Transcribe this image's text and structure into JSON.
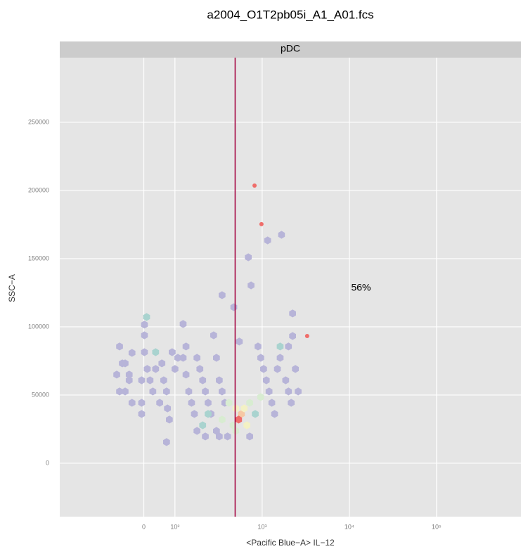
{
  "chart_data": {
    "type": "hexbin",
    "title": "a2004_O1T2pb05i_A1_A01.fcs",
    "panel_label": "pDC",
    "x_label": "<Pacific Blue−A> IL−12",
    "y_label": "SSC−A",
    "x_scale": "biexponential",
    "xlim": [
      -270,
      930000
    ],
    "ylim": [
      -39200,
      297400
    ],
    "xticks": [
      0,
      {
        "value": 100,
        "label": "10²"
      },
      {
        "value": 1000,
        "label": "10³"
      },
      {
        "value": 10000,
        "label": "10⁴"
      },
      {
        "value": 100000,
        "label": "10⁵"
      }
    ],
    "yticks": [
      0,
      50000,
      100000,
      150000,
      200000,
      250000
    ],
    "grid": true,
    "gate_x": 490,
    "gate_color": "#a3003f",
    "annotation": {
      "text": "56%",
      "x": 10500,
      "y": 128400
    },
    "palette": [
      "#b7b4d8",
      "#a9d3cf",
      "#d8ecd1",
      "#f3f1c4",
      "#f6c8a4",
      "#ef6d6a"
    ],
    "hexbins": {
      "x": [
        -78,
        -69,
        -87,
        -60,
        -47,
        -38,
        -78,
        -60,
        -47,
        -38,
        -7,
        -7,
        -7,
        2,
        2,
        9,
        2,
        11,
        20,
        29,
        38,
        38,
        51,
        58,
        64,
        73,
        76,
        82,
        73,
        91,
        100,
        108,
        124,
        124,
        134,
        134,
        144,
        155,
        167,
        179,
        193,
        208,
        223,
        240,
        259,
        278,
        299,
        322,
        347,
        373,
        347,
        473,
        547,
        694,
        746,
        896,
        964,
        1038,
        1116,
        1200,
        1291,
        1389,
        1608,
        1668,
        1157,
        1495,
        1862,
        2004,
        2155,
        2236,
        2236,
        2405,
        2588,
        2004,
        1608,
        416,
        499,
        578,
        537,
        622,
        720,
        833,
        669,
        464,
        347,
        964,
        240,
        208,
        299,
        401,
        499,
        720,
        223,
        322,
        179
      ],
      "y": [
        85600,
        73200,
        65000,
        73200,
        65000,
        80900,
        52600,
        52600,
        60800,
        44300,
        44300,
        60800,
        36100,
        101600,
        93800,
        107200,
        81400,
        69100,
        60800,
        52600,
        81400,
        69100,
        44300,
        73200,
        60800,
        52600,
        40200,
        32000,
        15500,
        81400,
        69100,
        77300,
        77300,
        102100,
        85600,
        65000,
        52600,
        44300,
        36100,
        77300,
        69100,
        60800,
        52600,
        44300,
        36100,
        93800,
        77300,
        60800,
        52600,
        44300,
        123200,
        114400,
        89200,
        151000,
        130400,
        85600,
        77300,
        69100,
        60800,
        52600,
        44300,
        36100,
        77300,
        167500,
        163400,
        69100,
        60800,
        52600,
        44300,
        109800,
        93300,
        69100,
        52600,
        85600,
        85600,
        44300,
        40200,
        36100,
        32000,
        40200,
        44300,
        36100,
        27800,
        27800,
        32000,
        48500,
        36100,
        27800,
        23700,
        19600,
        23700,
        19600,
        19600,
        19600,
        23700
      ],
      "counts": [
        1,
        1,
        1,
        1,
        1,
        1,
        1,
        1,
        1,
        1,
        1,
        1,
        1,
        1,
        1,
        2,
        1,
        1,
        1,
        1,
        2,
        1,
        1,
        1,
        1,
        1,
        1,
        1,
        1,
        1,
        1,
        1,
        1,
        1,
        1,
        1,
        1,
        1,
        1,
        1,
        1,
        1,
        1,
        1,
        1,
        1,
        1,
        1,
        1,
        1,
        1,
        1,
        1,
        1,
        1,
        1,
        1,
        1,
        1,
        1,
        1,
        1,
        1,
        1,
        1,
        1,
        1,
        1,
        1,
        1,
        1,
        1,
        1,
        1,
        2,
        3,
        4,
        5,
        6,
        4,
        3,
        2,
        4,
        3,
        3,
        3,
        2,
        2,
        1,
        1,
        3,
        1,
        1,
        1,
        1
      ]
    },
    "events": {
      "x": [
        818,
        982,
        3281
      ],
      "y": [
        203600,
        175300,
        93300
      ],
      "color": "#ef6d6a"
    }
  }
}
